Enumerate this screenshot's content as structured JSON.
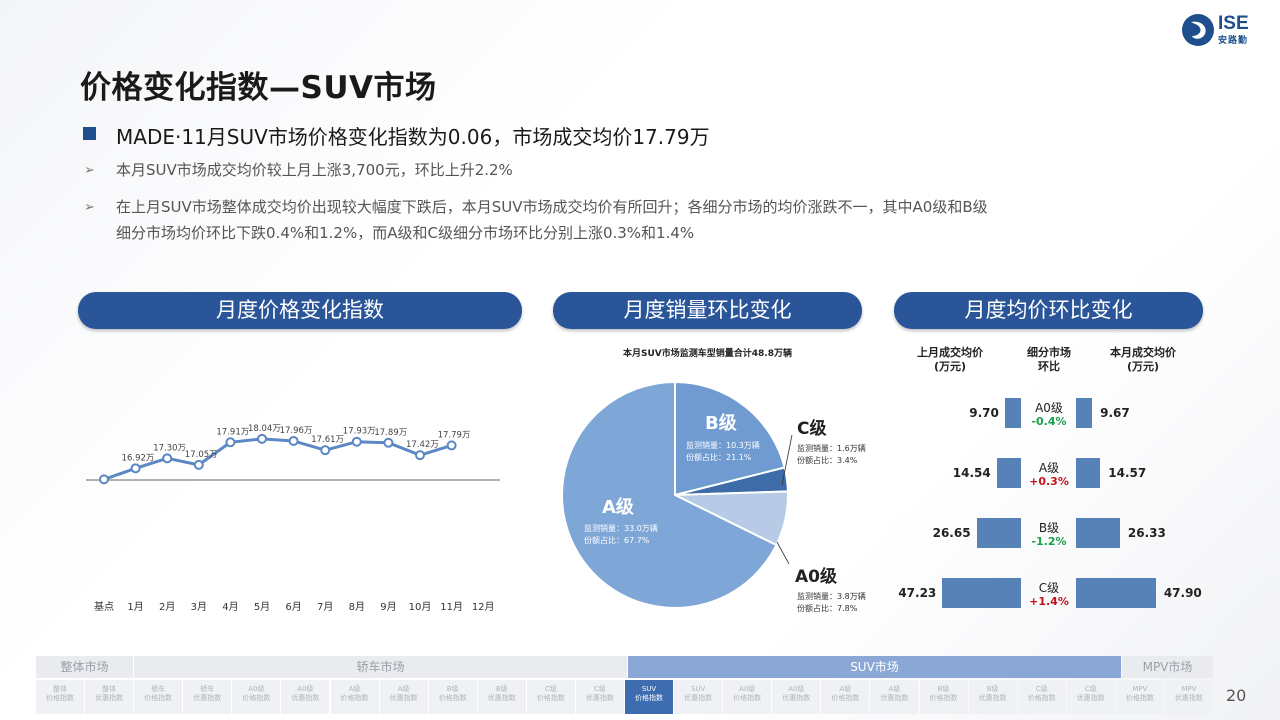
{
  "title": "价格变化指数—SUV市场",
  "logo": {
    "text": "ISE",
    "sub": "安路勤"
  },
  "headline": "MADE·11月SUV市场价格变化指数为0.06，市场成交均价17.79万",
  "bullets": [
    "本月SUV市场成交均价较上月上涨3,700元，环比上升2.2%",
    "在上月SUV市场整体成交均价出现较大幅度下跌后，本月SUV市场成交均价有所回升；各细分市场的均价涨跌不一，其中A0级和B级",
    "细分市场均价环比下跌0.4%和1.2%，而A级和C级细分市场环比分别上涨0.3%和1.4%"
  ],
  "bullet_marker": "➢",
  "sections": {
    "index": "月度价格变化指数",
    "sales": "月度销量环比变化",
    "avg": "月度均价环比变化"
  },
  "line_chart": {
    "months": [
      "基点",
      "1月",
      "2月",
      "3月",
      "4月",
      "5月",
      "6月",
      "7月",
      "8月",
      "9月",
      "10月",
      "11月",
      "12月"
    ],
    "labels": [
      "",
      "16.92万",
      "17.30万",
      "17.05万",
      "17.91万",
      "18.04万",
      "17.96万",
      "17.61万",
      "17.93万",
      "17.89万",
      "17.42万",
      "17.79万"
    ]
  },
  "chart_data": {
    "type": "line",
    "x": [
      "基点",
      "1月",
      "2月",
      "3月",
      "4月",
      "5月",
      "6月",
      "7月",
      "8月",
      "9月",
      "10月",
      "11月"
    ],
    "values": [
      16.5,
      16.92,
      17.3,
      17.05,
      17.91,
      18.04,
      17.96,
      17.61,
      17.93,
      17.89,
      17.42,
      17.79
    ],
    "color": "#5b87c5"
  },
  "pie": {
    "title": "本月SUV市场监测车型销量合计48.8万辆",
    "segments": [
      {
        "name": "A级",
        "sales": "监测销量：33.0万辆",
        "share": "份额占比：67.7%",
        "value": 67.7,
        "color": "#7ea6d6"
      },
      {
        "name": "B级",
        "sales": "监测销量：10.3万辆",
        "share": "份额占比：21.1%",
        "value": 21.1,
        "color": "#6f9bd1"
      },
      {
        "name": "C级",
        "sales": "监测销量：1.6万辆",
        "share": "份额占比：3.4%",
        "value": 3.4,
        "color": "#3e6ca8"
      },
      {
        "name": "A0级",
        "sales": "监测销量：3.8万辆",
        "share": "份额占比：7.8%",
        "value": 7.8,
        "color": "#b7cbe6"
      }
    ]
  },
  "avg_table": {
    "head_left": [
      "上月成交均价",
      "(万元)"
    ],
    "head_mid": [
      "细分市场",
      "环比"
    ],
    "head_right": [
      "本月成交均价",
      "(万元)"
    ],
    "rows": [
      {
        "name": "A0级",
        "pct": "-0.4%",
        "prev": "9.70",
        "curr": "9.67",
        "up": false,
        "prev_val": 9.7,
        "curr_val": 9.67
      },
      {
        "name": "A级",
        "pct": "+0.3%",
        "prev": "14.54",
        "curr": "14.57",
        "up": true,
        "prev_val": 14.54,
        "curr_val": 14.57
      },
      {
        "name": "B级",
        "pct": "-1.2%",
        "prev": "26.65",
        "curr": "26.33",
        "up": false,
        "prev_val": 26.65,
        "curr_val": 26.33
      },
      {
        "name": "C级",
        "pct": "+1.4%",
        "prev": "47.23",
        "curr": "47.90",
        "up": true,
        "prev_val": 47.23,
        "curr_val": 47.9
      }
    ]
  },
  "footer": {
    "categories": [
      {
        "label": "整体市场",
        "active": false
      },
      {
        "label": "轿车市场",
        "active": false
      },
      {
        "label": "SUV市场",
        "active": true
      },
      {
        "label": "MPV市场",
        "active": false
      }
    ],
    "items": [
      {
        "l1": "整体",
        "l2": "价格指数",
        "active": false
      },
      {
        "l1": "整体",
        "l2": "优惠指数",
        "active": false
      },
      {
        "l1": "轿车",
        "l2": "价格指数",
        "active": false
      },
      {
        "l1": "轿车",
        "l2": "优惠指数",
        "active": false
      },
      {
        "l1": "A0级",
        "l2": "价格指数",
        "active": false
      },
      {
        "l1": "A0级",
        "l2": "优惠指数",
        "active": false
      },
      {
        "l1": "A级",
        "l2": "价格指数",
        "active": false
      },
      {
        "l1": "A级",
        "l2": "优惠指数",
        "active": false
      },
      {
        "l1": "B级",
        "l2": "价格指数",
        "active": false
      },
      {
        "l1": "B级",
        "l2": "优惠指数",
        "active": false
      },
      {
        "l1": "C级",
        "l2": "价格指数",
        "active": false
      },
      {
        "l1": "C级",
        "l2": "优惠指数",
        "active": false
      },
      {
        "l1": "SUV",
        "l2": "价格指数",
        "active": true
      },
      {
        "l1": "SUV",
        "l2": "优惠指数",
        "active": false
      },
      {
        "l1": "A0级",
        "l2": "价格指数",
        "active": false
      },
      {
        "l1": "A0级",
        "l2": "优惠指数",
        "active": false
      },
      {
        "l1": "A级",
        "l2": "价格指数",
        "active": false
      },
      {
        "l1": "A级",
        "l2": "优惠指数",
        "active": false
      },
      {
        "l1": "B级",
        "l2": "价格指数",
        "active": false
      },
      {
        "l1": "B级",
        "l2": "优惠指数",
        "active": false
      },
      {
        "l1": "C级",
        "l2": "价格指数",
        "active": false
      },
      {
        "l1": "C级",
        "l2": "优惠指数",
        "active": false
      },
      {
        "l1": "MPV",
        "l2": "价格指数",
        "active": false
      },
      {
        "l1": "MPV",
        "l2": "优惠指数",
        "active": false
      }
    ]
  },
  "page_number": "20"
}
